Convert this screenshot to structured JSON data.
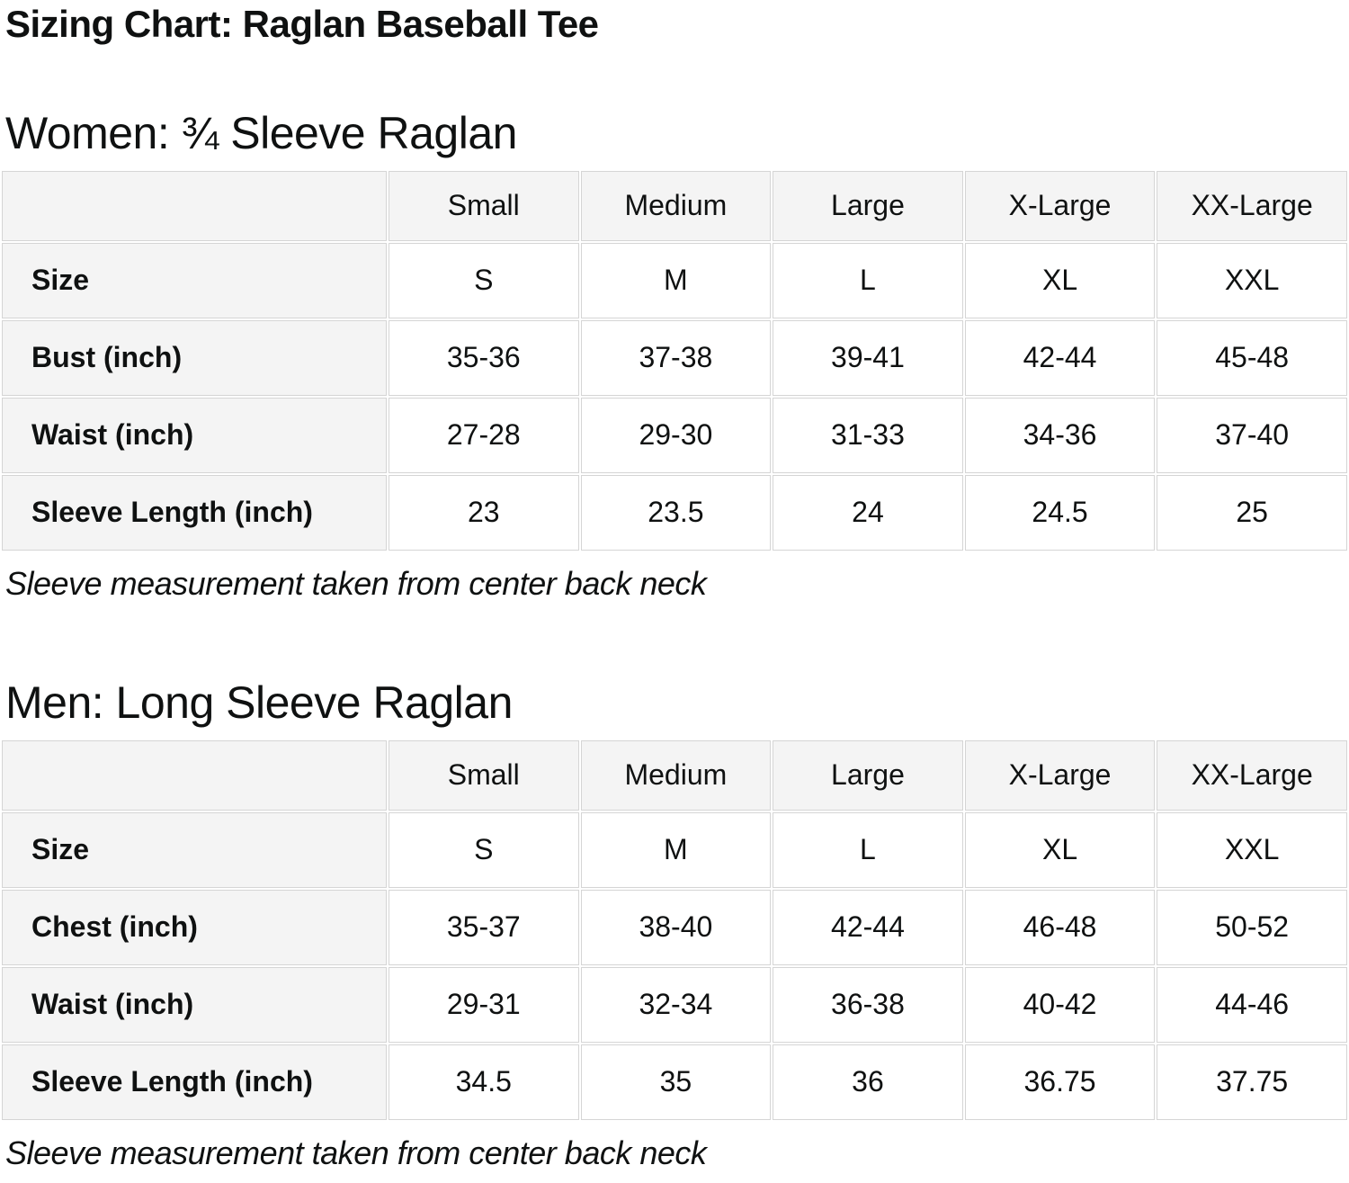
{
  "page": {
    "title": "Sizing Chart: Raglan Baseball Tee"
  },
  "colors": {
    "text": "#0f1111",
    "label_cell_bg": "#f4f4f4",
    "value_cell_bg": "#ffffff",
    "cell_border": "#d5d5d5",
    "page_bg": "#ffffff"
  },
  "sections": [
    {
      "heading": "Women: ¾ Sleeve Raglan",
      "note": "Sleeve measurement taken from center back neck",
      "table": {
        "columns": [
          "",
          "Small",
          "Medium",
          "Large",
          "X-Large",
          "XX-Large"
        ],
        "rows": [
          {
            "label": "Size",
            "values": [
              "S",
              "M",
              "L",
              "XL",
              "XXL"
            ]
          },
          {
            "label": "Bust (inch)",
            "values": [
              "35-36",
              "37-38",
              "39-41",
              "42-44",
              "45-48"
            ]
          },
          {
            "label": "Waist (inch)",
            "values": [
              "27-28",
              "29-30",
              "31-33",
              "34-36",
              "37-40"
            ]
          },
          {
            "label": "Sleeve Length (inch)",
            "values": [
              "23",
              "23.5",
              "24",
              "24.5",
              "25"
            ]
          }
        ]
      }
    },
    {
      "heading": "Men: Long Sleeve Raglan",
      "note": "Sleeve measurement taken from center back neck",
      "table": {
        "columns": [
          "",
          "Small",
          "Medium",
          "Large",
          "X-Large",
          "XX-Large"
        ],
        "rows": [
          {
            "label": "Size",
            "values": [
              "S",
              "M",
              "L",
              "XL",
              "XXL"
            ]
          },
          {
            "label": "Chest (inch)",
            "values": [
              "35-37",
              "38-40",
              "42-44",
              "46-48",
              "50-52"
            ]
          },
          {
            "label": "Waist (inch)",
            "values": [
              "29-31",
              "32-34",
              "36-38",
              "40-42",
              "44-46"
            ]
          },
          {
            "label": "Sleeve Length (inch)",
            "values": [
              "34.5",
              "35",
              "36",
              "36.75",
              "37.75"
            ]
          }
        ]
      }
    }
  ]
}
